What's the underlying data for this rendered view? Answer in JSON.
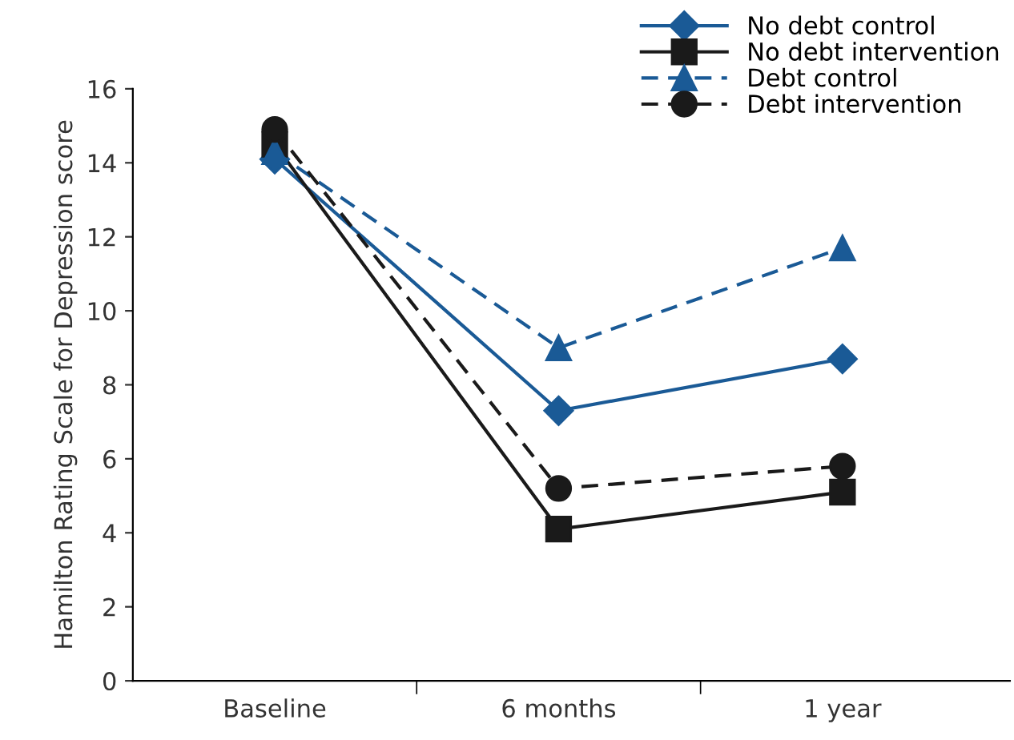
{
  "chart_data": {
    "type": "line",
    "ylabel": "Hamilton Rating Scale for Depression score",
    "categories": [
      "Baseline",
      "6 months",
      "1 year"
    ],
    "series": [
      {
        "name": "No debt control",
        "color": "#1a5a96",
        "marker": "diamond",
        "line_style": "solid",
        "values": [
          14.1,
          7.3,
          8.7
        ]
      },
      {
        "name": "No debt intervention",
        "color": "#1a1a1a",
        "marker": "square",
        "line_style": "solid",
        "values": [
          14.5,
          4.1,
          5.1
        ]
      },
      {
        "name": "Debt control",
        "color": "#1a5a96",
        "marker": "triangle",
        "line_style": "dashed",
        "values": [
          14.3,
          9.0,
          11.7
        ]
      },
      {
        "name": "Debt intervention",
        "color": "#1a1a1a",
        "marker": "circle",
        "line_style": "dashed",
        "values": [
          14.9,
          5.2,
          5.8
        ]
      }
    ],
    "ylim": [
      0,
      16
    ],
    "yticks": [
      0,
      2,
      4,
      6,
      8,
      10,
      12,
      14,
      16
    ],
    "grid": false,
    "legend": "top right"
  }
}
